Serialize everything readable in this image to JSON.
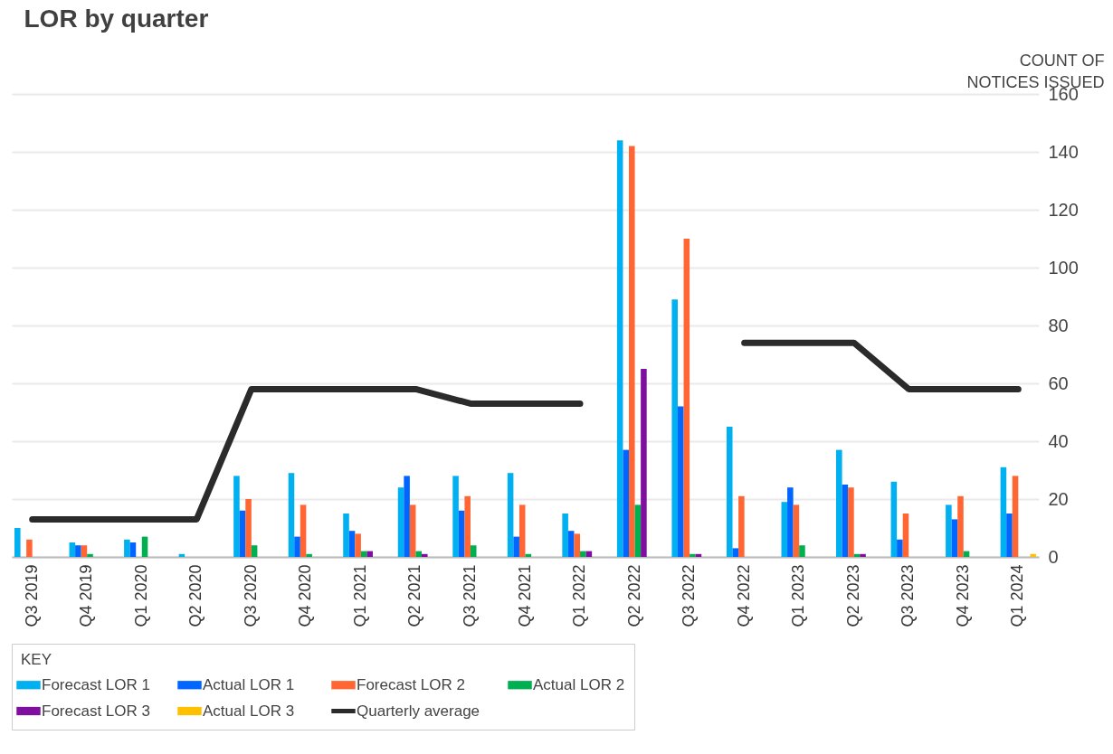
{
  "chart_data": {
    "type": "bar",
    "title": "LOR by quarter",
    "ylabel": "COUNT OF NOTICES ISSUED",
    "legend_title": "KEY",
    "categories": [
      "Q3 2019",
      "Q4 2019",
      "Q1 2020",
      "Q2 2020",
      "Q3 2020",
      "Q4 2020",
      "Q1 2021",
      "Q2 2021",
      "Q3 2021",
      "Q4 2021",
      "Q1 2022",
      "Q2 2022",
      "Q3 2022",
      "Q4 2022",
      "Q1 2023",
      "Q2 2023",
      "Q3 2023",
      "Q4 2023",
      "Q1 2024"
    ],
    "series": [
      {
        "name": "Forecast LOR 1",
        "color": "#00b0f0",
        "values": [
          10,
          5,
          6,
          1,
          28,
          29,
          15,
          24,
          28,
          29,
          15,
          144,
          89,
          45,
          19,
          37,
          26,
          18,
          31
        ]
      },
      {
        "name": "Actual LOR 1",
        "color": "#0066ff",
        "values": [
          0,
          4,
          5,
          0,
          16,
          7,
          9,
          28,
          16,
          7,
          9,
          37,
          52,
          3,
          24,
          25,
          6,
          13,
          15
        ]
      },
      {
        "name": "Forecast LOR 2",
        "color": "#ff6633",
        "values": [
          6,
          4,
          0,
          0,
          20,
          18,
          8,
          18,
          21,
          18,
          8,
          142,
          110,
          21,
          18,
          24,
          15,
          21,
          28
        ]
      },
      {
        "name": "Actual LOR 2",
        "color": "#00b050",
        "values": [
          0,
          1,
          7,
          0,
          4,
          1,
          2,
          2,
          4,
          1,
          2,
          18,
          1,
          0,
          4,
          1,
          0,
          2,
          0
        ]
      },
      {
        "name": "Forecast LOR 3",
        "color": "#7f0f9f",
        "values": [
          0,
          0,
          0,
          0,
          0,
          0,
          2,
          1,
          0,
          0,
          2,
          65,
          1,
          0,
          0,
          1,
          0,
          0,
          0
        ]
      },
      {
        "name": "Actual LOR 3",
        "color": "#ffc000",
        "values": [
          0,
          0,
          0,
          0,
          0,
          0,
          0,
          0,
          0,
          0,
          0,
          0,
          0,
          0,
          0,
          0,
          0,
          0,
          1
        ]
      },
      {
        "name": "Quarterly average",
        "type": "line",
        "color": "#2b2b2b",
        "values": [
          13,
          13,
          13,
          13,
          58,
          58,
          58,
          58,
          53,
          53,
          53,
          null,
          null,
          74,
          74,
          74,
          58,
          58,
          58
        ]
      }
    ],
    "ylim": [
      0,
      160
    ],
    "yticks": [
      0,
      20,
      40,
      60,
      80,
      100,
      120,
      140,
      160
    ],
    "grid": "y",
    "legend": "bottom",
    "marker": "none",
    "line_style": "solid"
  }
}
